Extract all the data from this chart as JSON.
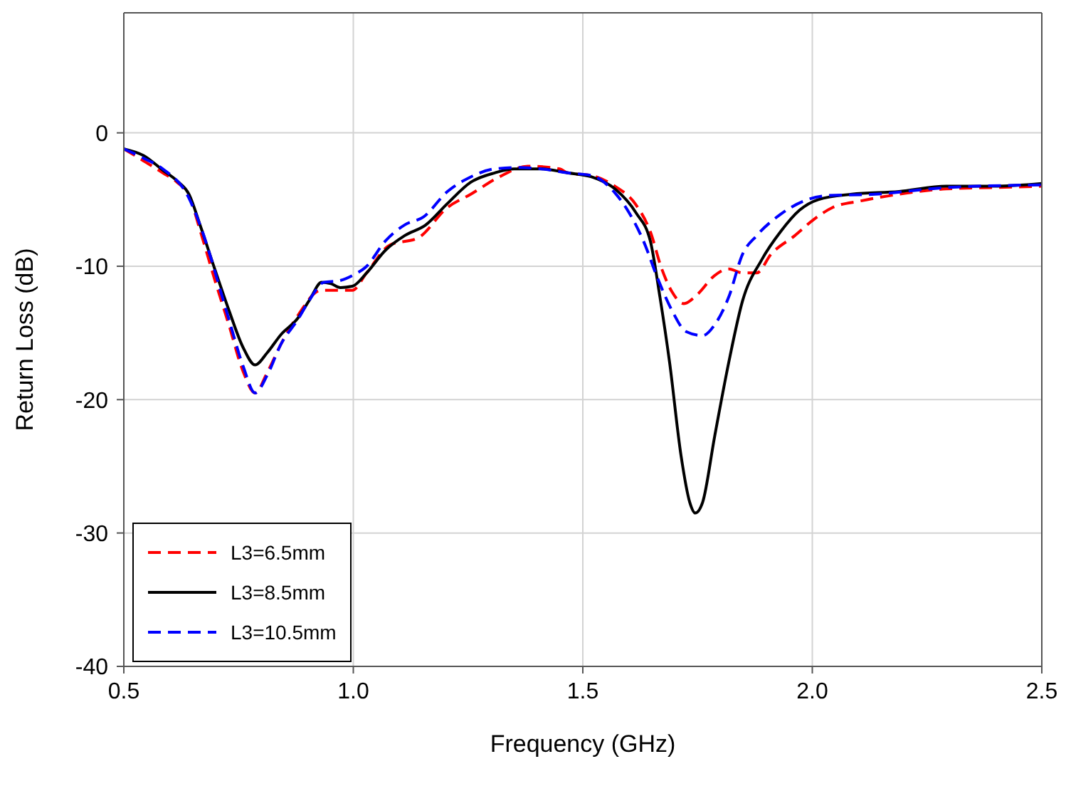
{
  "chart_data": {
    "type": "line",
    "xlabel": "Frequency (GHz)",
    "ylabel": "Return Loss (dB)",
    "xlim": [
      0.5,
      2.5
    ],
    "xticks": [
      0.5,
      {
        "value": 1,
        "label": "1.0"
      },
      1.5,
      {
        "value": 2,
        "label": "2.0"
      },
      2.5
    ],
    "ylim": [
      -40,
      9
    ],
    "yticks": [
      -40,
      -30,
      -20,
      -10,
      0
    ],
    "grid": true,
    "legend": "bottom left",
    "marker": "none",
    "series": [
      {
        "name": "L3=6.5mm",
        "color": "#ff0000",
        "line_style": "dashed",
        "x": [
          0.5,
          0.543,
          0.585,
          0.616,
          0.642,
          0.667,
          0.698,
          0.729,
          0.76,
          0.786,
          0.812,
          0.843,
          0.879,
          0.93,
          0.96,
          0.998,
          1.029,
          1.08,
          1.14,
          1.205,
          1.256,
          1.318,
          1.38,
          1.45,
          1.467,
          1.519,
          1.57,
          1.616,
          1.647,
          1.672,
          1.694,
          1.72,
          1.75,
          1.787,
          1.818,
          1.848,
          1.879,
          1.91,
          1.962,
          2.003,
          2.044,
          2.106,
          2.189,
          2.292,
          2.395,
          2.5
        ],
        "values": [
          -1.2,
          -2.1,
          -3.0,
          -3.7,
          -4.7,
          -7.4,
          -11.0,
          -14.4,
          -17.9,
          -19.5,
          -18.0,
          -15.8,
          -13.7,
          -11.8,
          -11.8,
          -11.8,
          -10.5,
          -8.4,
          -7.9,
          -5.6,
          -4.6,
          -3.3,
          -2.5,
          -2.7,
          -3.0,
          -3.2,
          -4.0,
          -5.4,
          -7.4,
          -10.2,
          -11.9,
          -12.8,
          -12.1,
          -10.7,
          -10.2,
          -10.5,
          -10.5,
          -9.1,
          -7.7,
          -6.5,
          -5.6,
          -5.1,
          -4.6,
          -4.2,
          -4.1,
          -4.0
        ]
      },
      {
        "name": "L3=8.5mm",
        "color": "#000000",
        "line_style": "solid",
        "x": [
          0.5,
          0.543,
          0.585,
          0.616,
          0.642,
          0.667,
          0.698,
          0.729,
          0.76,
          0.786,
          0.812,
          0.843,
          0.879,
          0.905,
          0.931,
          0.951,
          0.972,
          0.998,
          1.029,
          1.07,
          1.112,
          1.158,
          1.205,
          1.256,
          1.308,
          1.35,
          1.41,
          1.467,
          1.519,
          1.57,
          1.616,
          1.647,
          1.668,
          1.689,
          1.714,
          1.733,
          1.745,
          1.761,
          1.787,
          1.818,
          1.848,
          1.89,
          1.931,
          1.972,
          2.013,
          2.086,
          2.189,
          2.292,
          2.395,
          2.5
        ],
        "values": [
          -1.2,
          -1.7,
          -2.8,
          -3.6,
          -4.6,
          -7.0,
          -10.2,
          -13.3,
          -16.1,
          -17.4,
          -16.5,
          -15.1,
          -13.9,
          -12.5,
          -11.2,
          -11.3,
          -11.6,
          -11.5,
          -10.5,
          -8.8,
          -7.7,
          -6.9,
          -5.3,
          -3.7,
          -3.0,
          -2.7,
          -2.7,
          -3.0,
          -3.3,
          -4.2,
          -6.0,
          -8.1,
          -12.3,
          -17.2,
          -24.2,
          -27.7,
          -28.5,
          -27.7,
          -22.8,
          -17.2,
          -12.6,
          -9.5,
          -7.4,
          -5.8,
          -5.0,
          -4.6,
          -4.4,
          -4.0,
          -4.0,
          -3.8
        ]
      },
      {
        "name": "L3=10.5mm",
        "color": "#0000ff",
        "line_style": "dashed",
        "x": [
          0.5,
          0.543,
          0.585,
          0.642,
          0.667,
          0.729,
          0.76,
          0.786,
          0.812,
          0.843,
          0.879,
          0.905,
          0.936,
          0.967,
          0.998,
          1.029,
          1.07,
          1.112,
          1.153,
          1.205,
          1.256,
          1.308,
          1.36,
          1.41,
          1.467,
          1.519,
          1.57,
          1.601,
          1.632,
          1.663,
          1.694,
          1.725,
          1.761,
          1.787,
          1.818,
          1.848,
          1.879,
          1.931,
          1.982,
          2.034,
          2.137,
          2.292,
          2.5
        ],
        "values": [
          -1.2,
          -1.9,
          -2.7,
          -4.9,
          -7.0,
          -14.0,
          -17.5,
          -19.5,
          -18.2,
          -15.8,
          -14.0,
          -12.5,
          -11.2,
          -11.1,
          -10.7,
          -10.0,
          -8.1,
          -6.9,
          -6.3,
          -4.4,
          -3.3,
          -2.7,
          -2.6,
          -2.7,
          -3.0,
          -3.2,
          -4.5,
          -6.0,
          -8.1,
          -10.9,
          -13.3,
          -14.9,
          -15.2,
          -14.4,
          -12.3,
          -9.1,
          -7.7,
          -6.1,
          -5.1,
          -4.7,
          -4.6,
          -4.1,
          -3.9
        ]
      }
    ]
  }
}
